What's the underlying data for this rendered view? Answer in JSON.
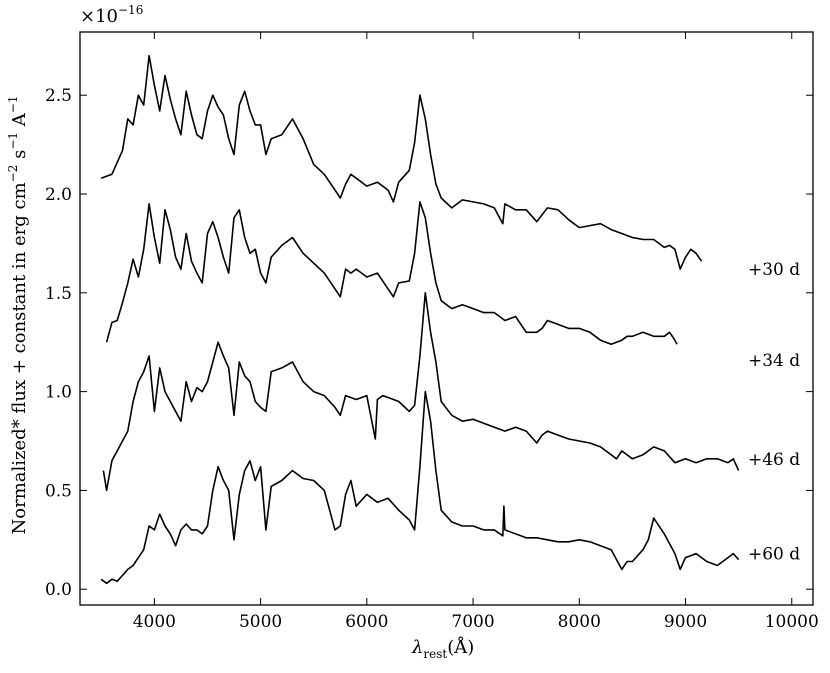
{
  "chart_data": {
    "type": "line",
    "ylabel": "Normalized* flux + constant in erg cm^{-2} s^{-1} A^{-1}",
    "ylabel_parts": {
      "main": "Normalized* flux + constant in erg cm",
      "exp1": "−2",
      "mid": " s",
      "exp2": "−1",
      "end": " A",
      "exp3": "−1"
    },
    "xlabel_parts": {
      "main": "λ",
      "sub": "rest",
      "unit": "(Å)"
    },
    "y_multiplier": "×10^{-16}",
    "y_multiplier_parts": {
      "main": "×10",
      "exp": "−16"
    },
    "xlim": [
      3300,
      10200
    ],
    "ylim": [
      -0.08,
      2.82
    ],
    "x_ticks": [
      4000,
      5000,
      6000,
      7000,
      8000,
      9000,
      10000
    ],
    "x_tick_labels": [
      "4000",
      "5000",
      "6000",
      "7000",
      "8000",
      "9000",
      "10000"
    ],
    "y_ticks": [
      0.0,
      0.5,
      1.0,
      1.5,
      2.0,
      2.5
    ],
    "y_tick_labels": [
      "0.0",
      "0.5",
      "1.0",
      "1.5",
      "2.0",
      "2.5"
    ],
    "grid": false,
    "series_color": "#000000",
    "series": [
      {
        "name": "+30 d",
        "label_y": 1.62,
        "x": [
          3500,
          3600,
          3700,
          3750,
          3800,
          3850,
          3900,
          3950,
          4000,
          4050,
          4100,
          4150,
          4200,
          4250,
          4300,
          4350,
          4400,
          4450,
          4500,
          4550,
          4600,
          4650,
          4700,
          4750,
          4800,
          4850,
          4900,
          4950,
          5000,
          5050,
          5100,
          5200,
          5300,
          5400,
          5500,
          5600,
          5700,
          5750,
          5800,
          5850,
          5900,
          6000,
          6100,
          6200,
          6250,
          6300,
          6400,
          6450,
          6500,
          6550,
          6600,
          6650,
          6700,
          6800,
          6900,
          7000,
          7100,
          7200,
          7280,
          7300,
          7400,
          7500,
          7600,
          7700,
          7800,
          7900,
          8000,
          8100,
          8200,
          8300,
          8400,
          8500,
          8600,
          8700,
          8800,
          8850,
          8900,
          8950,
          9000,
          9050,
          9100,
          9150
        ],
        "y": [
          2.08,
          2.1,
          2.22,
          2.38,
          2.35,
          2.5,
          2.45,
          2.7,
          2.55,
          2.42,
          2.6,
          2.48,
          2.38,
          2.3,
          2.52,
          2.4,
          2.3,
          2.28,
          2.42,
          2.5,
          2.44,
          2.4,
          2.28,
          2.2,
          2.45,
          2.52,
          2.42,
          2.35,
          2.35,
          2.2,
          2.28,
          2.3,
          2.38,
          2.28,
          2.15,
          2.1,
          2.02,
          1.98,
          2.05,
          2.1,
          2.08,
          2.04,
          2.06,
          2.02,
          1.96,
          2.06,
          2.12,
          2.26,
          2.5,
          2.38,
          2.2,
          2.05,
          1.98,
          1.93,
          1.97,
          1.96,
          1.95,
          1.93,
          1.85,
          1.95,
          1.92,
          1.92,
          1.86,
          1.93,
          1.92,
          1.87,
          1.83,
          1.84,
          1.85,
          1.82,
          1.8,
          1.78,
          1.77,
          1.77,
          1.73,
          1.74,
          1.72,
          1.62,
          1.68,
          1.72,
          1.7,
          1.66
        ]
      },
      {
        "name": "+34 d",
        "label_y": 1.16,
        "x": [
          3550,
          3600,
          3650,
          3700,
          3750,
          3800,
          3850,
          3900,
          3950,
          4000,
          4050,
          4100,
          4150,
          4200,
          4250,
          4300,
          4350,
          4400,
          4450,
          4500,
          4550,
          4600,
          4650,
          4700,
          4750,
          4800,
          4850,
          4900,
          4950,
          5000,
          5050,
          5100,
          5200,
          5300,
          5400,
          5500,
          5600,
          5700,
          5750,
          5800,
          5850,
          5900,
          6000,
          6100,
          6200,
          6250,
          6300,
          6400,
          6450,
          6500,
          6550,
          6600,
          6650,
          6700,
          6800,
          6900,
          7000,
          7100,
          7200,
          7300,
          7400,
          7500,
          7600,
          7650,
          7700,
          7800,
          7900,
          8000,
          8100,
          8200,
          8300,
          8400,
          8450,
          8500,
          8600,
          8700,
          8800,
          8850,
          8900,
          8920
        ],
        "y": [
          1.25,
          1.35,
          1.36,
          1.45,
          1.55,
          1.67,
          1.58,
          1.72,
          1.95,
          1.78,
          1.65,
          1.92,
          1.82,
          1.68,
          1.62,
          1.8,
          1.66,
          1.6,
          1.55,
          1.8,
          1.86,
          1.78,
          1.68,
          1.6,
          1.88,
          1.92,
          1.78,
          1.7,
          1.72,
          1.6,
          1.55,
          1.68,
          1.74,
          1.78,
          1.7,
          1.65,
          1.6,
          1.52,
          1.48,
          1.62,
          1.6,
          1.62,
          1.58,
          1.6,
          1.52,
          1.48,
          1.55,
          1.56,
          1.7,
          1.96,
          1.88,
          1.7,
          1.55,
          1.46,
          1.42,
          1.44,
          1.42,
          1.4,
          1.4,
          1.36,
          1.38,
          1.3,
          1.3,
          1.32,
          1.36,
          1.34,
          1.32,
          1.32,
          1.3,
          1.26,
          1.24,
          1.26,
          1.28,
          1.28,
          1.3,
          1.28,
          1.28,
          1.3,
          1.26,
          1.24
        ]
      },
      {
        "name": "+46 d",
        "label_y": 0.66,
        "x": [
          3520,
          3550,
          3600,
          3650,
          3700,
          3750,
          3800,
          3850,
          3900,
          3950,
          4000,
          4050,
          4100,
          4150,
          4200,
          4250,
          4300,
          4350,
          4400,
          4450,
          4500,
          4550,
          4600,
          4650,
          4700,
          4750,
          4800,
          4850,
          4900,
          4950,
          5000,
          5050,
          5100,
          5200,
          5300,
          5400,
          5500,
          5600,
          5700,
          5750,
          5800,
          5900,
          6000,
          6080,
          6100,
          6150,
          6200,
          6300,
          6400,
          6450,
          6500,
          6550,
          6600,
          6650,
          6700,
          6800,
          6900,
          7000,
          7100,
          7200,
          7300,
          7400,
          7500,
          7600,
          7650,
          7700,
          7800,
          7900,
          8000,
          8100,
          8200,
          8300,
          8350,
          8400,
          8500,
          8600,
          8700,
          8800,
          8900,
          9000,
          9100,
          9200,
          9300,
          9400,
          9450,
          9500
        ],
        "y": [
          0.6,
          0.5,
          0.65,
          0.7,
          0.75,
          0.8,
          0.95,
          1.05,
          1.1,
          1.18,
          0.9,
          1.12,
          1.0,
          0.95,
          0.9,
          0.85,
          1.05,
          0.95,
          1.02,
          1.0,
          1.05,
          1.15,
          1.25,
          1.18,
          1.12,
          0.88,
          1.15,
          1.08,
          1.05,
          0.95,
          0.92,
          0.9,
          1.1,
          1.12,
          1.15,
          1.05,
          1.0,
          0.98,
          0.92,
          0.88,
          0.98,
          0.96,
          0.98,
          0.76,
          0.96,
          0.98,
          0.97,
          0.95,
          0.9,
          0.93,
          1.18,
          1.5,
          1.3,
          1.15,
          0.95,
          0.88,
          0.85,
          0.86,
          0.84,
          0.82,
          0.8,
          0.82,
          0.8,
          0.74,
          0.78,
          0.8,
          0.78,
          0.76,
          0.75,
          0.74,
          0.72,
          0.68,
          0.66,
          0.7,
          0.66,
          0.68,
          0.72,
          0.7,
          0.64,
          0.66,
          0.64,
          0.66,
          0.66,
          0.64,
          0.66,
          0.6
        ]
      },
      {
        "name": "+60 d",
        "label_y": 0.18,
        "x": [
          3500,
          3550,
          3600,
          3650,
          3700,
          3750,
          3800,
          3850,
          3900,
          3950,
          4000,
          4050,
          4100,
          4150,
          4200,
          4250,
          4300,
          4350,
          4400,
          4450,
          4500,
          4550,
          4600,
          4650,
          4700,
          4750,
          4800,
          4850,
          4900,
          4950,
          5000,
          5050,
          5100,
          5200,
          5300,
          5400,
          5500,
          5600,
          5700,
          5750,
          5800,
          5850,
          5900,
          6000,
          6100,
          6200,
          6300,
          6400,
          6450,
          6500,
          6550,
          6600,
          6650,
          6700,
          6800,
          6900,
          7000,
          7100,
          7200,
          7280,
          7290,
          7300,
          7400,
          7500,
          7550,
          7600,
          7700,
          7800,
          7900,
          8000,
          8100,
          8200,
          8300,
          8350,
          8400,
          8450,
          8500,
          8600,
          8650,
          8700,
          8800,
          8900,
          8950,
          9000,
          9100,
          9200,
          9300,
          9400,
          9450,
          9500
        ],
        "y": [
          0.05,
          0.03,
          0.05,
          0.04,
          0.07,
          0.1,
          0.12,
          0.16,
          0.2,
          0.32,
          0.3,
          0.38,
          0.32,
          0.28,
          0.22,
          0.3,
          0.33,
          0.3,
          0.3,
          0.28,
          0.32,
          0.5,
          0.62,
          0.55,
          0.5,
          0.25,
          0.48,
          0.6,
          0.65,
          0.55,
          0.62,
          0.3,
          0.52,
          0.55,
          0.6,
          0.56,
          0.55,
          0.5,
          0.3,
          0.32,
          0.48,
          0.55,
          0.42,
          0.48,
          0.44,
          0.46,
          0.4,
          0.35,
          0.3,
          0.62,
          1.0,
          0.85,
          0.6,
          0.4,
          0.34,
          0.32,
          0.32,
          0.3,
          0.3,
          0.27,
          0.42,
          0.3,
          0.28,
          0.26,
          0.26,
          0.26,
          0.25,
          0.24,
          0.24,
          0.25,
          0.24,
          0.22,
          0.2,
          0.15,
          0.1,
          0.14,
          0.14,
          0.2,
          0.25,
          0.36,
          0.28,
          0.18,
          0.1,
          0.16,
          0.18,
          0.14,
          0.12,
          0.16,
          0.18,
          0.15
        ]
      }
    ]
  }
}
